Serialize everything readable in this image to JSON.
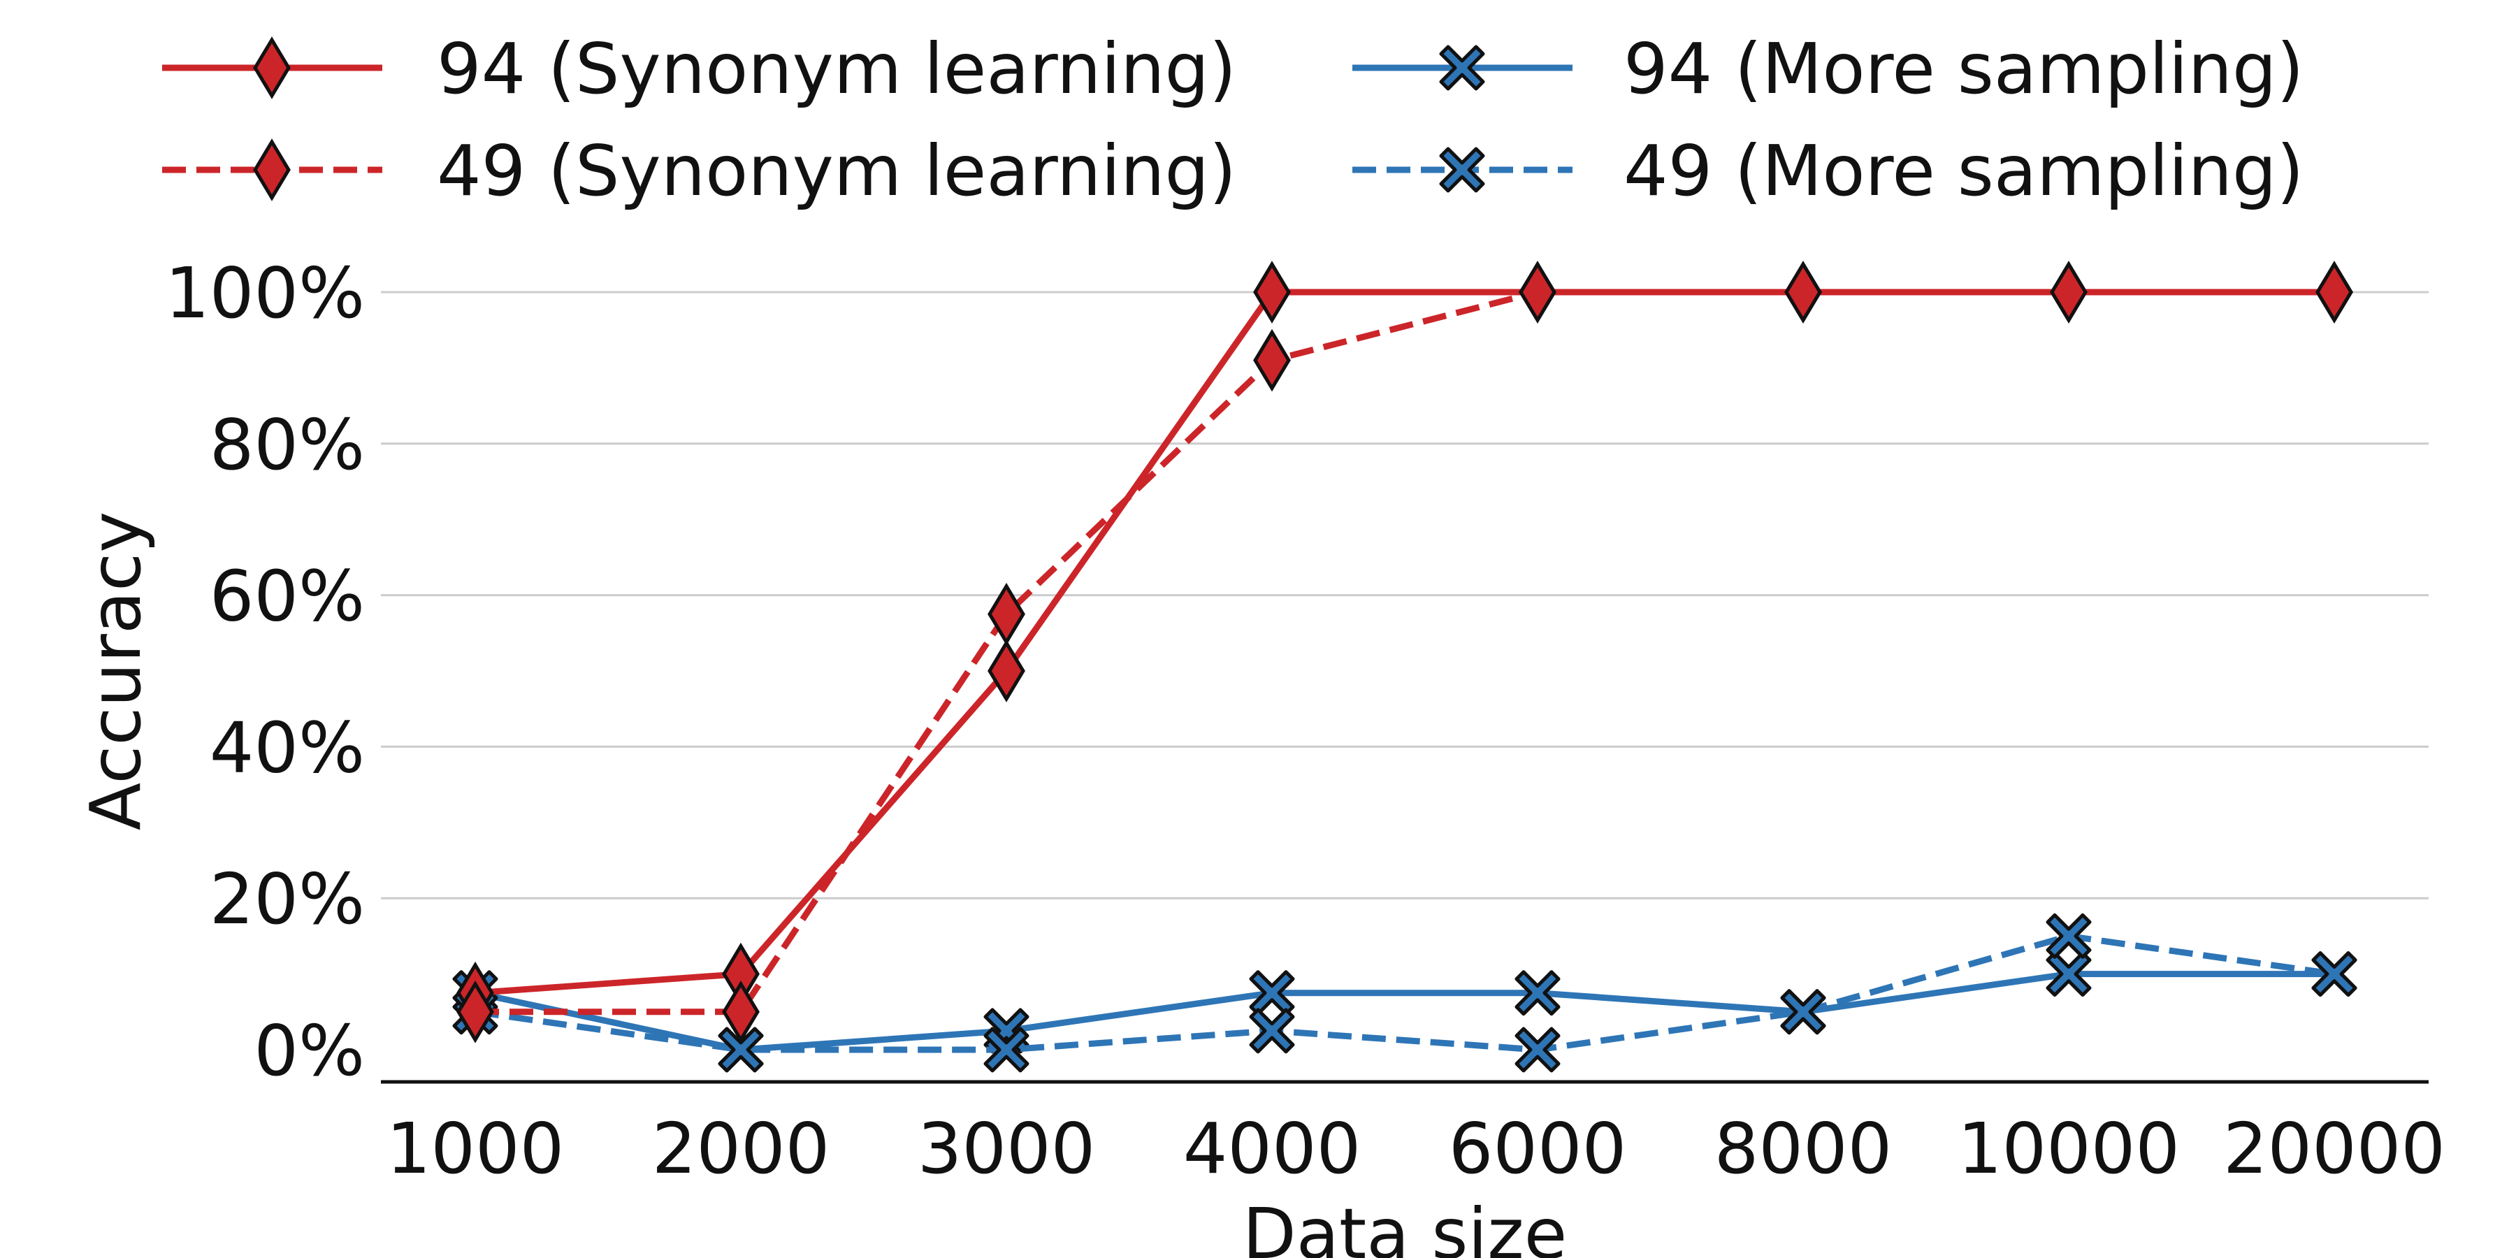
{
  "chart_data": {
    "type": "line",
    "categories": [
      "1000",
      "2000",
      "3000",
      "4000",
      "6000",
      "8000",
      "10000",
      "20000"
    ],
    "xlabel": "Data size",
    "ylabel": "Accuracy",
    "ylim": [
      0,
      100
    ],
    "yticks": [
      0,
      20,
      40,
      60,
      80,
      100
    ],
    "ytick_labels": [
      "0%",
      "20%",
      "40%",
      "60%",
      "80%",
      "100%"
    ],
    "grid": "horizontal",
    "legend_position": "top",
    "series": [
      {
        "name": "94 (Synonym learning)",
        "color": "#cc2529",
        "dash": "solid",
        "marker": "diamond",
        "values": [
          7.5,
          10,
          50,
          100,
          100,
          100,
          100,
          100
        ]
      },
      {
        "name": "49 (Synonym learning)",
        "color": "#cc2529",
        "dash": "dashed",
        "marker": "diamond",
        "values": [
          5,
          5,
          57.5,
          91,
          100,
          100,
          100,
          100
        ]
      },
      {
        "name": "94 (More sampling)",
        "color": "#2e75b6",
        "dash": "solid",
        "marker": "x",
        "values": [
          7.5,
          0,
          2.5,
          7.5,
          7.5,
          5,
          10,
          10
        ]
      },
      {
        "name": "49 (More sampling)",
        "color": "#2e75b6",
        "dash": "dashed",
        "marker": "x",
        "values": [
          5,
          0,
          0,
          2.5,
          0,
          5,
          15,
          10
        ]
      }
    ]
  }
}
